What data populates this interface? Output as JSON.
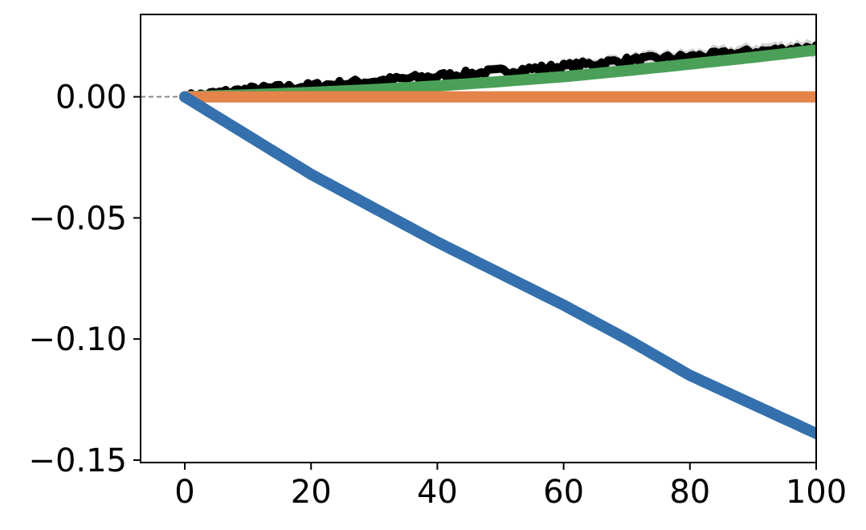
{
  "chart_data": {
    "type": "line",
    "title": "",
    "xlabel": "",
    "ylabel": "",
    "xlim": [
      -7,
      100
    ],
    "ylim": [
      -0.151,
      0.034
    ],
    "x_ticks": [
      0,
      20,
      40,
      60,
      80,
      100
    ],
    "x_tick_labels": [
      "0",
      "20",
      "40",
      "60",
      "80",
      "100"
    ],
    "y_ticks": [
      0.0,
      -0.05,
      -0.1,
      -0.15
    ],
    "y_tick_labels": [
      "0.00",
      "−0.05",
      "−0.10",
      "−0.15"
    ],
    "grid": false,
    "legend": "none",
    "reference_line": {
      "y": 0,
      "color": "#888888",
      "style": "dashed"
    },
    "series": [
      {
        "color": "#000000",
        "band_color": "#c8c8c8",
        "noisy": true,
        "x": [
          0,
          10,
          20,
          30,
          40,
          50,
          60,
          70,
          80,
          90,
          100
        ],
        "values": [
          0.0,
          0.003,
          0.0045,
          0.0065,
          0.0085,
          0.0105,
          0.0125,
          0.015,
          0.0165,
          0.0185,
          0.0205
        ]
      },
      {
        "color": "#4ba057",
        "band_color": "#b7dcbc",
        "x": [
          0,
          10,
          20,
          30,
          40,
          50,
          60,
          70,
          80,
          90,
          100
        ],
        "values": [
          0.0,
          0.0008,
          0.0018,
          0.003,
          0.0045,
          0.0063,
          0.0083,
          0.0108,
          0.0135,
          0.0163,
          0.0193
        ]
      },
      {
        "color": "#e4834a",
        "band_color": "#f5cdb3",
        "x": [
          0,
          10,
          20,
          30,
          40,
          50,
          60,
          70,
          80,
          90,
          100
        ],
        "values": [
          0.0,
          0.0,
          0.0,
          0.0,
          0.0,
          0.0,
          0.0,
          0.0,
          0.0,
          0.0,
          0.0
        ]
      },
      {
        "color": "#3470ad",
        "band_color": "#c6d7ec",
        "x": [
          0,
          10,
          20,
          30,
          40,
          50,
          60,
          70,
          80,
          90,
          100
        ],
        "values": [
          0.0,
          -0.016,
          -0.032,
          -0.046,
          -0.06,
          -0.073,
          -0.086,
          -0.1,
          -0.115,
          -0.127,
          -0.139
        ]
      }
    ]
  }
}
